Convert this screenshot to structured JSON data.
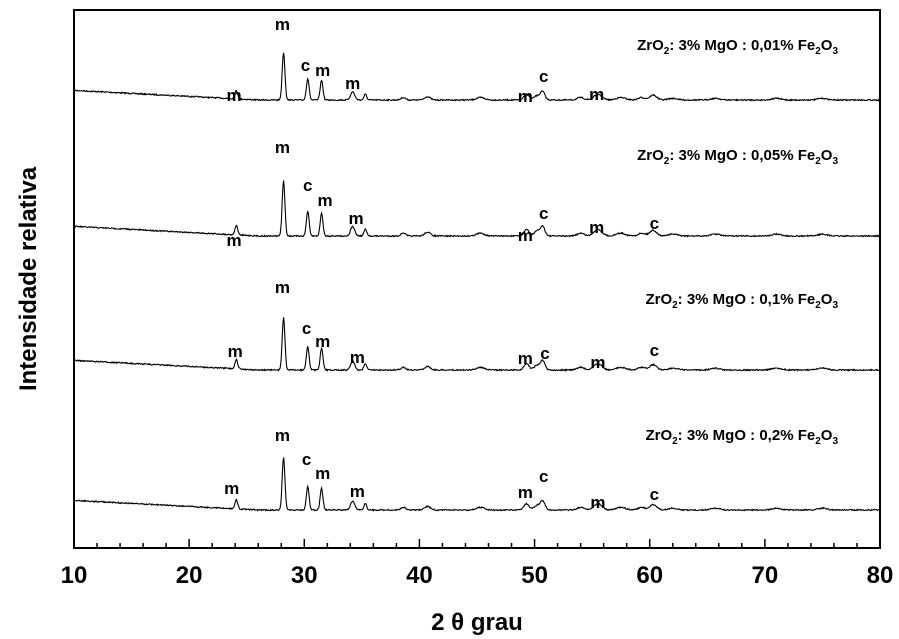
{
  "chart_data": {
    "type": "line",
    "xlabel": "2 θ grau",
    "ylabel": "Intensidade relativa",
    "xlim": [
      10,
      80
    ],
    "x_ticks": [
      10,
      20,
      30,
      40,
      50,
      60,
      70,
      80
    ],
    "y_ticks_shown": false,
    "grid": false,
    "stacked_offset": true,
    "line_color": "#000000",
    "peaks_2theta": {
      "m_1": 24.1,
      "m_2": 28.2,
      "c_1": 30.3,
      "m_3": 31.5,
      "m_4": 34.2,
      "m_5": 35.3,
      "m_6": 49.3,
      "c_2": 50.7,
      "m_7": 55.5,
      "c_3": 60.3
    },
    "series": [
      {
        "label_parts": [
          "ZrO",
          "2",
          ": 3% MgO : 0,01% Fe",
          "2",
          "O",
          "3"
        ],
        "peak_labels": [
          {
            "text": "m",
            "x": 23.9
          },
          {
            "text": "m",
            "x": 28.1
          },
          {
            "text": "c",
            "x": 30.1
          },
          {
            "text": "m",
            "x": 31.6
          },
          {
            "text": "m",
            "x": 34.2
          },
          {
            "text": "m",
            "x": 49.2
          },
          {
            "text": "c",
            "x": 50.8
          },
          {
            "text": "m",
            "x": 55.4
          }
        ]
      },
      {
        "label_parts": [
          "ZrO",
          "2",
          ": 3% MgO : 0,05% Fe",
          "2",
          "O",
          "3"
        ],
        "peak_labels": [
          {
            "text": "m",
            "x": 23.9
          },
          {
            "text": "m",
            "x": 28.1
          },
          {
            "text": "c",
            "x": 30.3
          },
          {
            "text": "m",
            "x": 31.8
          },
          {
            "text": "m",
            "x": 34.5
          },
          {
            "text": "m",
            "x": 49.2
          },
          {
            "text": "c",
            "x": 50.8
          },
          {
            "text": "m",
            "x": 55.4
          },
          {
            "text": "c",
            "x": 60.4
          }
        ]
      },
      {
        "label_parts": [
          "ZrO",
          "2",
          ": 3% MgO : 0,1% Fe",
          "2",
          "O",
          "3"
        ],
        "peak_labels": [
          {
            "text": "m",
            "x": 24.0
          },
          {
            "text": "m",
            "x": 28.1
          },
          {
            "text": "c",
            "x": 30.2
          },
          {
            "text": "m",
            "x": 31.6
          },
          {
            "text": "m",
            "x": 34.6
          },
          {
            "text": "m",
            "x": 49.2
          },
          {
            "text": "c",
            "x": 50.9
          },
          {
            "text": "m",
            "x": 55.5
          },
          {
            "text": "c",
            "x": 60.4
          }
        ]
      },
      {
        "label_parts": [
          "ZrO",
          "2",
          ": 3% MgO : 0,2% Fe",
          "2",
          "O",
          "3"
        ],
        "peak_labels": [
          {
            "text": "m",
            "x": 23.7
          },
          {
            "text": "m",
            "x": 28.1
          },
          {
            "text": "c",
            "x": 30.2
          },
          {
            "text": "m",
            "x": 31.6
          },
          {
            "text": "m",
            "x": 34.6
          },
          {
            "text": "m",
            "x": 49.2
          },
          {
            "text": "c",
            "x": 50.8
          },
          {
            "text": "m",
            "x": 55.5
          },
          {
            "text": "c",
            "x": 60.4
          }
        ]
      }
    ]
  }
}
